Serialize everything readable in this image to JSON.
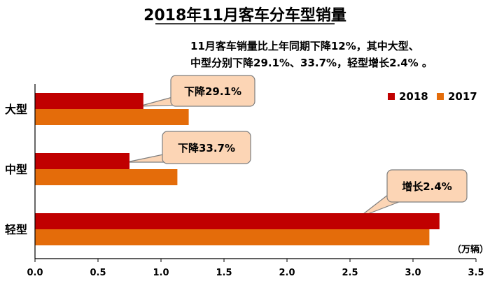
{
  "chart_data": {
    "type": "bar",
    "orientation": "horizontal",
    "title": "2018年11月客车分车型销量",
    "subtitle_lines": [
      "11月客车销量比上年同期下降12%，其中大型、",
      "中型分别下降29.1%、33.7%，轻型增长2.4% 。"
    ],
    "categories": [
      "大型",
      "中型",
      "轻型"
    ],
    "series": [
      {
        "name": "2018",
        "color": "#c00000",
        "values": [
          0.86,
          0.75,
          3.21
        ]
      },
      {
        "name": "2017",
        "color": "#e46c0a",
        "values": [
          1.22,
          1.13,
          3.13
        ]
      }
    ],
    "xlim": [
      0,
      3.5
    ],
    "xticks": [
      "0.0",
      "0.5",
      "1.0",
      "1.5",
      "2.0",
      "2.5",
      "3.0",
      "3.5"
    ],
    "unit": "（万辆）",
    "legend_position": "right",
    "grid": false,
    "annotations": [
      {
        "text": "下降29.1%",
        "category": "大型"
      },
      {
        "text": "下降33.7%",
        "category": "中型"
      },
      {
        "text": "增长2.4%",
        "category": "轻型"
      }
    ],
    "callout_fill": "#fcd5b5"
  }
}
